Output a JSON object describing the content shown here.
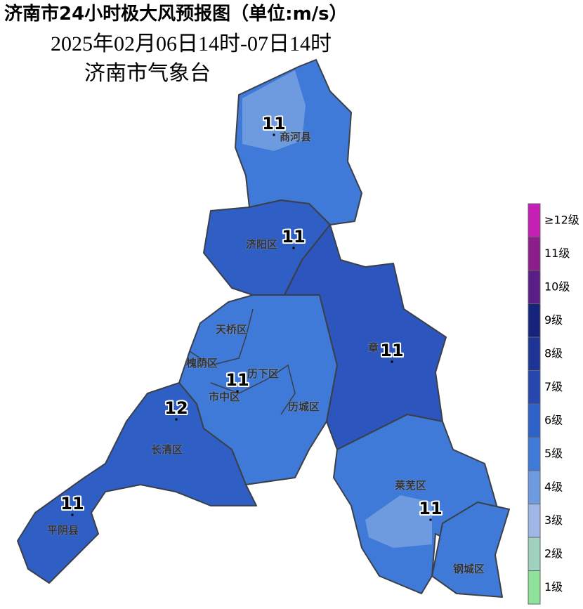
{
  "header": {
    "title": "济南市24小时极大风预报图（单位:m/s）",
    "period": "2025年02月06日14时-07日14时",
    "agency": "济南市气象台"
  },
  "districts": [
    {
      "name": "商河县"
    },
    {
      "name": "济阳区"
    },
    {
      "name": "天桥区"
    },
    {
      "name": "章"
    },
    {
      "name": "槐荫区"
    },
    {
      "name": "历下区"
    },
    {
      "name": "市中区"
    },
    {
      "name": "历城区"
    },
    {
      "name": "长清区"
    },
    {
      "name": "莱芜区"
    },
    {
      "name": "平阴县"
    },
    {
      "name": "钢城区"
    }
  ],
  "stations": [
    {
      "value": 11
    },
    {
      "value": 11
    },
    {
      "value": 11
    },
    {
      "value": 11
    },
    {
      "value": 12
    },
    {
      "value": 11
    },
    {
      "value": 11
    }
  ],
  "legend": {
    "levels": [
      {
        "label": "≥12级",
        "color": "#c71fb5"
      },
      {
        "label": "11级",
        "color": "#8e1d8c"
      },
      {
        "label": "10级",
        "color": "#5b1e86"
      },
      {
        "label": "9级",
        "color": "#15237a"
      },
      {
        "label": "8级",
        "color": "#1e3597"
      },
      {
        "label": "7级",
        "color": "#2747b0"
      },
      {
        "label": "6级",
        "color": "#2f62c9"
      },
      {
        "label": "5级",
        "color": "#3f7ad8"
      },
      {
        "label": "4级",
        "color": "#6e9be0"
      },
      {
        "label": "3级",
        "color": "#9fb7e6"
      },
      {
        "label": "2级",
        "color": "#9ed2bf"
      },
      {
        "label": "1级",
        "color": "#8ee29a"
      }
    ]
  }
}
